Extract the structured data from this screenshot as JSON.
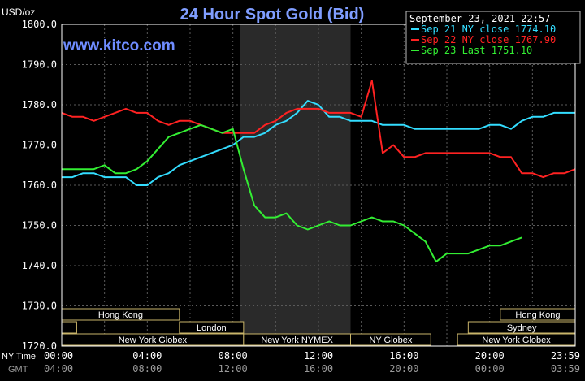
{
  "header": {
    "title": "24 Hour Spot Gold (Bid)",
    "unit": "USD/oz",
    "datetime": "September 23, 2021 22:57",
    "watermark": "www.kitco.com"
  },
  "chart_data": {
    "type": "line",
    "title": "24 Hour Spot Gold (Bid)",
    "ylabel": "USD/oz",
    "ylim": [
      1720,
      1800
    ],
    "y_ticks": [
      "1800.0",
      "1790.0",
      "1780.0",
      "1770.0",
      "1760.0",
      "1750.0",
      "1740.0",
      "1730.0",
      "1720.0"
    ],
    "x_ticks_ny": [
      "00:00",
      "04:00",
      "08:00",
      "12:00",
      "16:00",
      "20:00",
      "23:59"
    ],
    "x_ticks_gmt": [
      "04:00",
      "08:00",
      "12:00",
      "16:00",
      "20:00",
      "00:00",
      "03:59"
    ],
    "xlabel_ny": "NY Time",
    "xlabel_gmt": "GMT",
    "grid": true,
    "legend_position": "top-right",
    "x": [
      0,
      0.5,
      1,
      1.5,
      2,
      2.5,
      3,
      3.5,
      4,
      4.5,
      5,
      5.5,
      6,
      6.5,
      7,
      7.5,
      8,
      8.5,
      9,
      9.5,
      10,
      10.5,
      11,
      11.5,
      12,
      12.5,
      13,
      13.5,
      14,
      14.5,
      15,
      15.5,
      16,
      16.5,
      17,
      17.5,
      18,
      18.5,
      19,
      19.5,
      20,
      20.5,
      21,
      21.5,
      22,
      22.5,
      23,
      23.5,
      24
    ],
    "series": [
      {
        "name": "Sep 21 NY close 1774.10",
        "color": "#33ddff",
        "values": [
          1762,
          1762,
          1763,
          1763,
          1762,
          1762,
          1762,
          1760,
          1760,
          1762,
          1763,
          1765,
          1766,
          1767,
          1768,
          1769,
          1770,
          1772,
          1772,
          1773,
          1775,
          1776,
          1778,
          1781,
          1780,
          1777,
          1777,
          1776,
          1776,
          1776,
          1775,
          1775,
          1775,
          1774,
          1774,
          1774,
          1774,
          1774,
          1774,
          1774,
          1775,
          1775,
          1774,
          1776,
          1777,
          1777,
          1778,
          1778,
          1778
        ]
      },
      {
        "name": "Sep 22 NY close 1767.90",
        "color": "#ff2222",
        "values": [
          1778,
          1777,
          1777,
          1776,
          1777,
          1778,
          1779,
          1778,
          1778,
          1776,
          1775,
          1776,
          1776,
          1775,
          1774,
          1773,
          1773,
          1773,
          1773,
          1775,
          1776,
          1778,
          1779,
          1779,
          1779,
          1778,
          1778,
          1778,
          1777,
          1786,
          1768,
          1770,
          1767,
          1767,
          1768,
          1768,
          1768,
          1768,
          1768,
          1768,
          1768,
          1767,
          1767,
          1763,
          1763,
          1762,
          1763,
          1763,
          1764
        ]
      },
      {
        "name": "Sep 23 Last 1751.10",
        "color": "#33ee33",
        "values": [
          1764,
          1764,
          1764,
          1764,
          1765,
          1763,
          1763,
          1764,
          1766,
          1769,
          1772,
          1773,
          1774,
          1775,
          1774,
          1773,
          1774,
          1764,
          1755,
          1752,
          1752,
          1753,
          1750,
          1749,
          1750,
          1751,
          1750,
          1750,
          1751,
          1752,
          1751,
          1751,
          1750,
          1748,
          1746,
          1741,
          1743,
          1743,
          1743,
          1744,
          1745,
          1745,
          1746,
          1747,
          1748,
          1749,
          1749,
          1750,
          1751
        ]
      }
    ],
    "series_end_x": [
      24,
      24,
      21.9
    ],
    "shaded_periods": [
      {
        "from": 8.33,
        "to": 13.5
      }
    ],
    "sessions": [
      {
        "label": "Hong Kong",
        "start": 0,
        "end": 5.5,
        "row": 0
      },
      {
        "label": "London",
        "start": 0,
        "end": 0.7,
        "row": 1
      },
      {
        "label": "London",
        "start": 5.5,
        "end": 8.5,
        "row": 1
      },
      {
        "label": "New York Globex",
        "start": 0,
        "end": 8.5,
        "row": 2
      },
      {
        "label": "New York NYMEX",
        "start": 8.5,
        "end": 13.5,
        "row": 2
      },
      {
        "label": "NY Globex",
        "start": 13.5,
        "end": 17.25,
        "row": 2
      },
      {
        "label": "Hong Kong",
        "start": 20.5,
        "end": 24,
        "row": 0
      },
      {
        "label": "Sydney",
        "start": 19,
        "end": 24,
        "row": 1
      },
      {
        "label": "New York Globex",
        "start": 18.5,
        "end": 24,
        "row": 2
      }
    ]
  }
}
